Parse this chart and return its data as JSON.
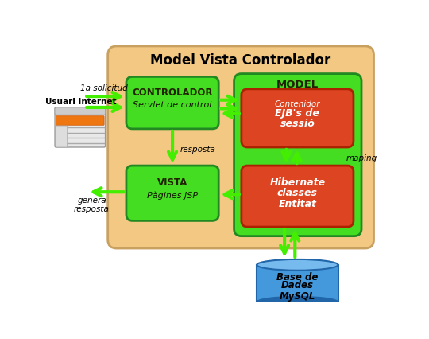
{
  "title": "Model Vista Controlador",
  "bg_tan": "#f2c882",
  "bg_tan_border": "#c8a060",
  "color_green": "#44dd22",
  "color_green_border": "#228822",
  "color_red": "#dd4422",
  "color_red_border": "#aa2200",
  "color_blue_cyl": "#4499dd",
  "color_blue_dark": "#2266aa",
  "color_blue_light": "#77bbee",
  "color_arrow": "#44ee00",
  "controlador_title": "CONTROLADOR",
  "controlador_sub": "Servlet de control",
  "vista_title": "VISTA",
  "vista_sub": "Pàgines JSP",
  "model_title": "MODEL",
  "ejb_line1": "Contenidor",
  "ejb_line2": "EJB's de",
  "ejb_line3": "sessió",
  "hibernate_line1": "Hibernate",
  "hibernate_line2": "classes",
  "hibernate_line3": "Entitat",
  "db_line1": "Base de",
  "db_line2": "Dades",
  "db_line3": "MySQL",
  "label_solicitud": "1a solicitud",
  "label_resposta": "resposta",
  "label_genera": "genera\nresposta",
  "label_maping": "maping",
  "label_usuari": "Usuari Internet"
}
